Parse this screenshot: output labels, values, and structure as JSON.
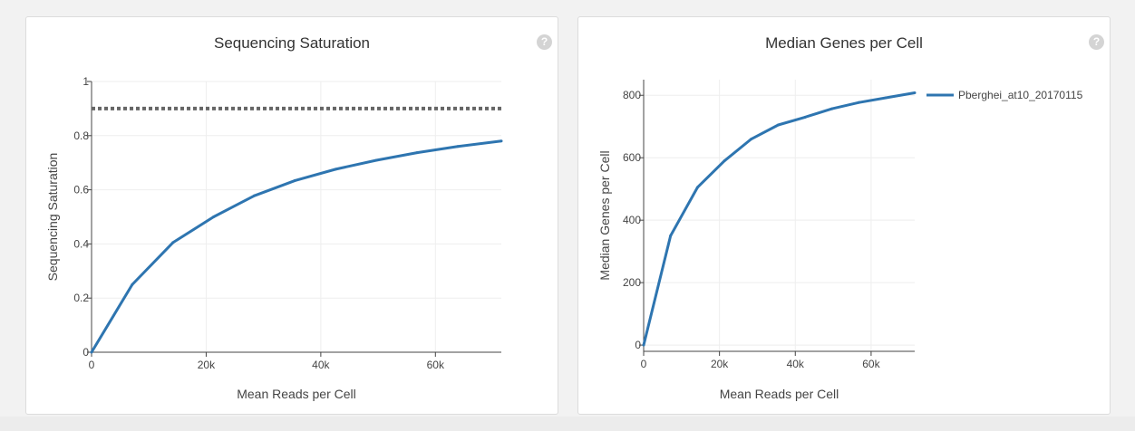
{
  "panels": {
    "left": {
      "title": "Sequencing Saturation",
      "help_icon": "question-circle-icon"
    },
    "right": {
      "title": "Median Genes per Cell",
      "help_icon": "question-circle-icon"
    }
  },
  "colors": {
    "series": "#2e75b0",
    "target_line": "#666666",
    "grid": "#eeeeee",
    "axis": "#444444"
  },
  "chart_data": [
    {
      "type": "line",
      "title": "Sequencing Saturation",
      "xlabel": "Mean Reads per Cell",
      "ylabel": "Sequencing Saturation",
      "xlim": [
        0,
        71500
      ],
      "ylim": [
        0,
        1
      ],
      "x_ticks": [
        0,
        20000,
        40000,
        60000
      ],
      "x_tick_labels": [
        "0",
        "20k",
        "40k",
        "60k"
      ],
      "y_ticks": [
        0,
        0.2,
        0.4,
        0.6,
        0.8,
        1
      ],
      "y_tick_labels": [
        "0",
        "0.2",
        "0.4",
        "0.6",
        "0.8",
        "1"
      ],
      "grid": true,
      "legend": null,
      "reference_lines": [
        {
          "y": 0.9,
          "style": "dotted"
        }
      ],
      "series": [
        {
          "x": [
            0,
            7100,
            14200,
            21300,
            28400,
            35500,
            42600,
            49700,
            56800,
            63900,
            71500
          ],
          "y": [
            0,
            0.25,
            0.405,
            0.5,
            0.578,
            0.634,
            0.676,
            0.709,
            0.737,
            0.76,
            0.78
          ]
        }
      ]
    },
    {
      "type": "line",
      "title": "Median Genes per Cell",
      "xlabel": "Mean Reads per Cell",
      "ylabel": "Median Genes per Cell",
      "xlim": [
        0,
        71500
      ],
      "ylim": [
        -20,
        850
      ],
      "x_ticks": [
        0,
        20000,
        40000,
        60000
      ],
      "x_tick_labels": [
        "0",
        "20k",
        "40k",
        "60k"
      ],
      "y_ticks": [
        0,
        200,
        400,
        600,
        800
      ],
      "y_tick_labels": [
        "0",
        "200",
        "400",
        "600",
        "800"
      ],
      "grid": true,
      "legend": "top-right",
      "series": [
        {
          "name": "Pberghei_at10_20170115",
          "x": [
            0,
            7100,
            14200,
            21300,
            28400,
            35500,
            42600,
            49700,
            56800,
            63900,
            71500
          ],
          "y": [
            0,
            350,
            505,
            590,
            660,
            705,
            730,
            757,
            777,
            792,
            808
          ]
        }
      ]
    }
  ]
}
